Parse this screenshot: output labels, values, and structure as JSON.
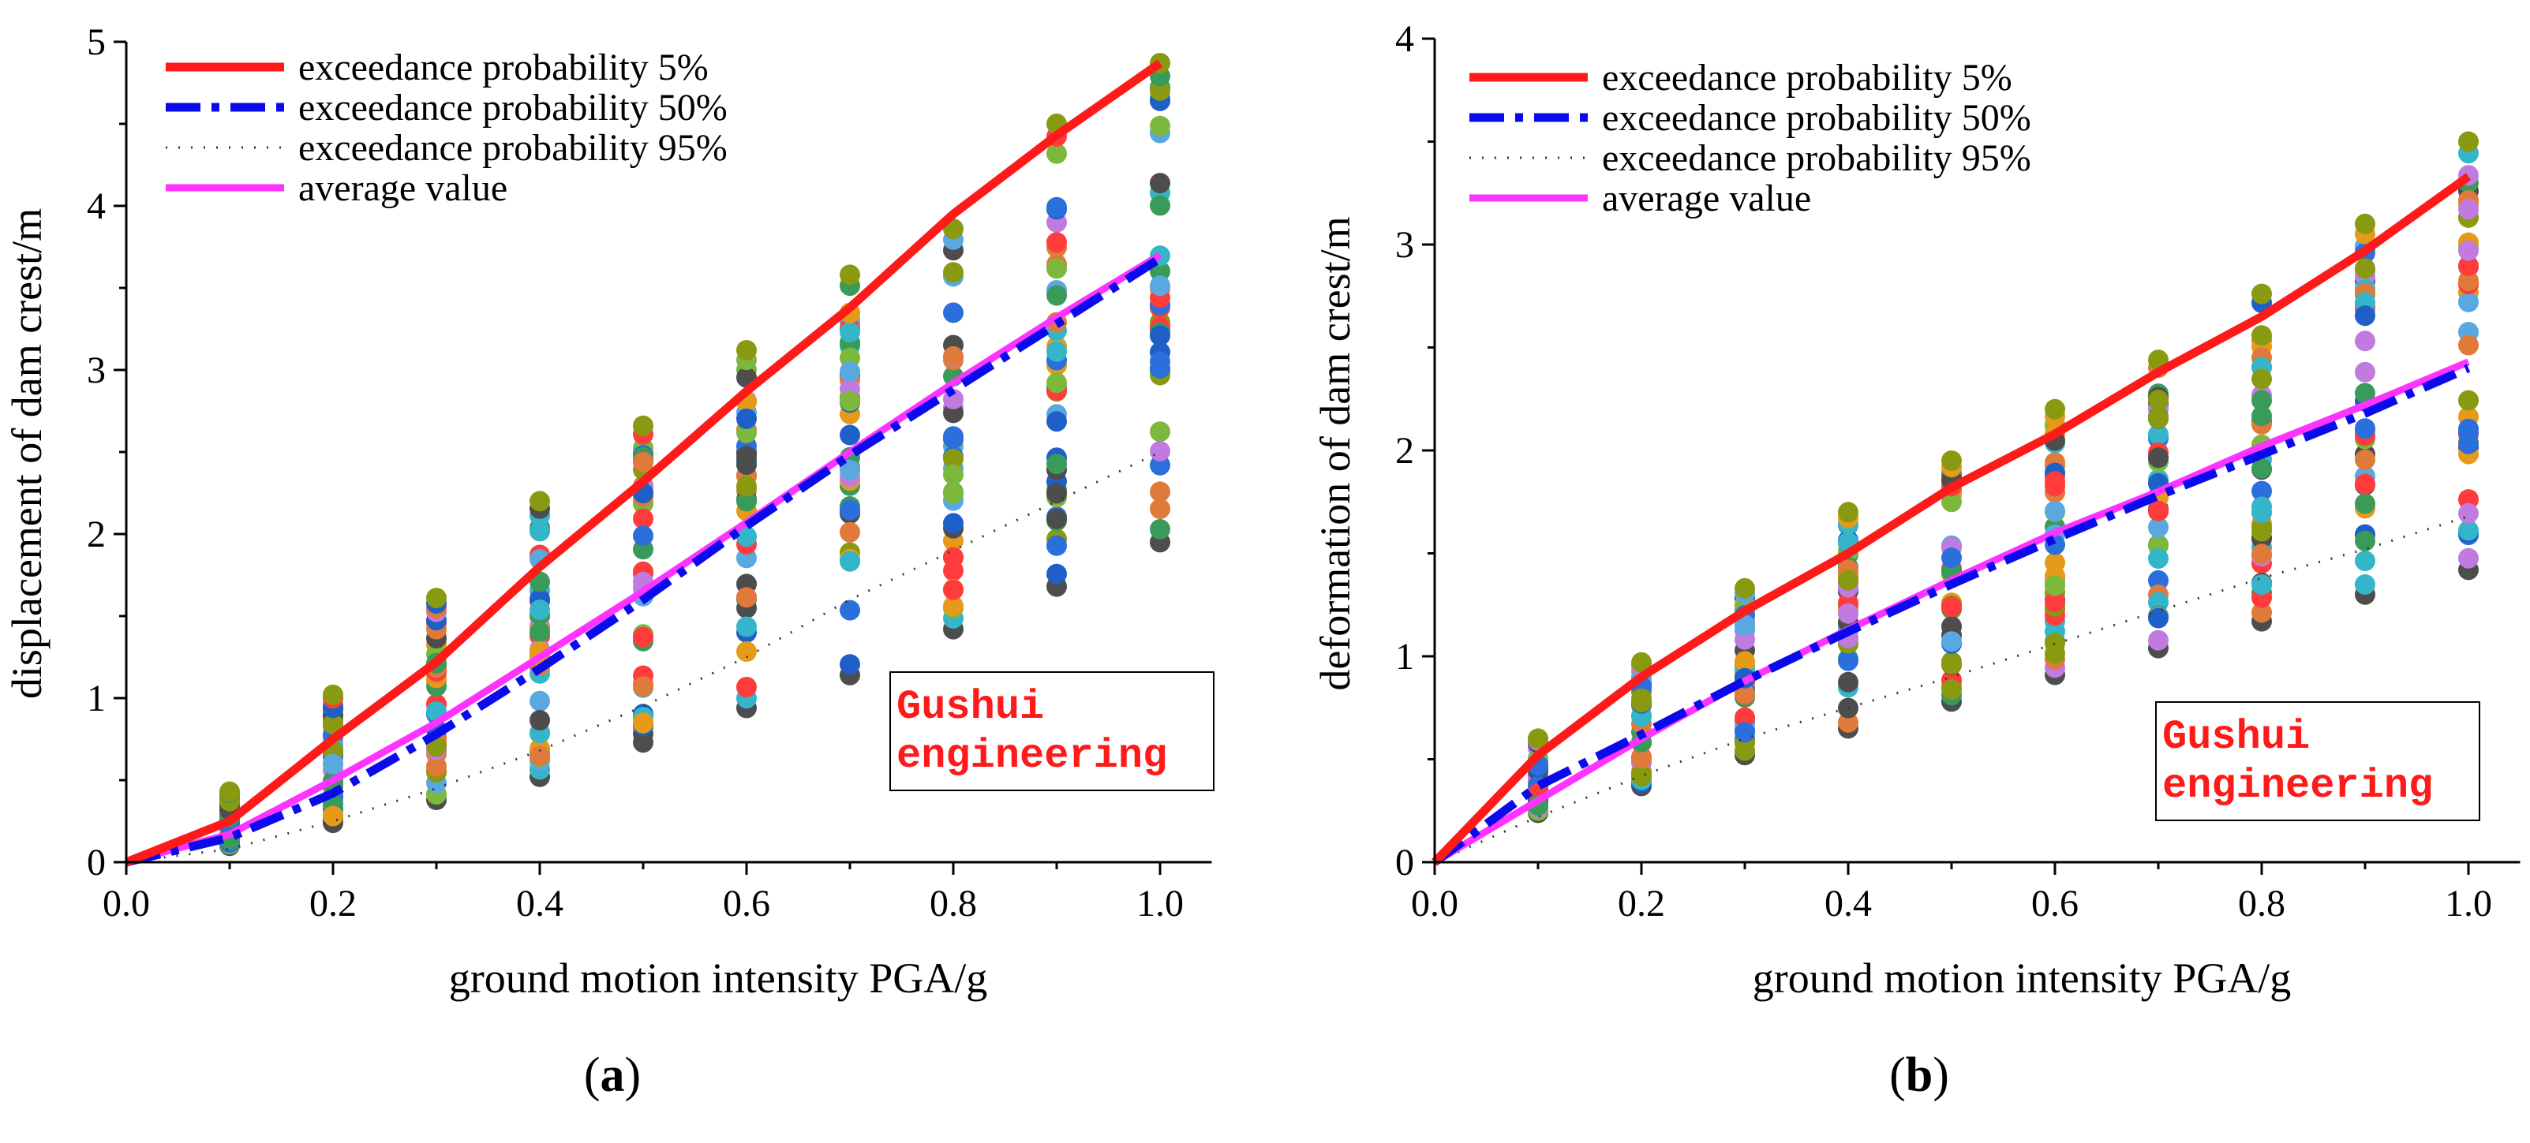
{
  "chart_data": [
    {
      "type": "scatter",
      "panel_label": "(a)",
      "xlabel": "ground motion intensity PGA/g",
      "ylabel": "displacement of dam crest/m",
      "xlim": [
        0.0,
        1.05
      ],
      "ylim": [
        0,
        5
      ],
      "xticks": [
        "0.0",
        "0.2",
        "0.4",
        "0.6",
        "0.8",
        "1.0"
      ],
      "yticks": [
        "0",
        "1",
        "2",
        "3",
        "4",
        "5"
      ],
      "annotation": [
        "Gushui",
        "engineering"
      ],
      "x": [
        0,
        0.1,
        0.2,
        0.3,
        0.4,
        0.5,
        0.6,
        0.7,
        0.8,
        0.9,
        1.0
      ],
      "scatter_range": {
        "min": [
          0,
          0.1,
          0.24,
          0.38,
          0.52,
          0.73,
          0.94,
          1.14,
          1.42,
          1.68,
          1.95
        ],
        "max": [
          0,
          0.43,
          1.02,
          1.61,
          2.2,
          2.66,
          3.12,
          3.58,
          3.86,
          4.5,
          4.87
        ]
      },
      "series": [
        {
          "name": "exceedance probability 5%",
          "values": [
            0,
            0.25,
            0.75,
            1.22,
            1.8,
            2.32,
            2.87,
            3.38,
            3.95,
            4.43,
            4.87
          ]
        },
        {
          "name": "exceedance probability 50%",
          "values": [
            0,
            0.15,
            0.42,
            0.78,
            1.18,
            1.6,
            2.05,
            2.48,
            2.88,
            3.28,
            3.68
          ]
        },
        {
          "name": "exceedance probability 95%",
          "values": [
            0,
            0.08,
            0.25,
            0.45,
            0.68,
            0.95,
            1.25,
            1.6,
            1.9,
            2.2,
            2.5
          ]
        },
        {
          "name": "average value",
          "values": [
            0,
            0.17,
            0.5,
            0.85,
            1.25,
            1.65,
            2.07,
            2.5,
            2.92,
            3.32,
            3.7
          ]
        }
      ]
    },
    {
      "type": "scatter",
      "panel_label": "(b)",
      "xlabel": "ground motion intensity PGA/g",
      "ylabel": "deformation of dam crest/m",
      "xlim": [
        0.0,
        1.05
      ],
      "ylim": [
        0,
        4
      ],
      "xticks": [
        "0.0",
        "0.2",
        "0.4",
        "0.6",
        "0.8",
        "1.0"
      ],
      "yticks": [
        "0",
        "1",
        "2",
        "3",
        "4"
      ],
      "annotation": [
        "Gushui",
        "engineering"
      ],
      "x": [
        0,
        0.1,
        0.2,
        0.3,
        0.4,
        0.5,
        0.6,
        0.7,
        0.8,
        0.9,
        1.0
      ],
      "scatter_range": {
        "min": [
          0,
          0.24,
          0.37,
          0.52,
          0.65,
          0.78,
          0.91,
          1.04,
          1.17,
          1.3,
          1.42
        ],
        "max": [
          0,
          0.6,
          0.97,
          1.33,
          1.7,
          1.95,
          2.2,
          2.44,
          2.76,
          3.1,
          3.5
        ]
      },
      "series": [
        {
          "name": "exceedance probability 5%",
          "values": [
            0,
            0.52,
            0.9,
            1.22,
            1.5,
            1.82,
            2.08,
            2.38,
            2.65,
            2.97,
            3.33
          ]
        },
        {
          "name": "exceedance probability 50%",
          "values": [
            0,
            0.37,
            0.62,
            0.88,
            1.12,
            1.35,
            1.57,
            1.78,
            1.98,
            2.18,
            2.4
          ]
        },
        {
          "name": "exceedance probability 95%",
          "values": [
            0,
            0.22,
            0.42,
            0.6,
            0.75,
            0.9,
            1.06,
            1.22,
            1.38,
            1.52,
            1.68
          ]
        },
        {
          "name": "average value",
          "values": [
            0,
            0.3,
            0.6,
            0.88,
            1.13,
            1.37,
            1.6,
            1.8,
            2.02,
            2.22,
            2.43
          ]
        }
      ]
    }
  ],
  "style": {
    "colors": {
      "p5": "#ff1a1a",
      "p50": "#0a0aeb",
      "p95": "#333333",
      "avg": "#ff33ff",
      "annotation": "#ff1a1a"
    },
    "scatter_palette": [
      "#ff3b3b",
      "#2a6fdb",
      "#35b5c9",
      "#8a9a10",
      "#4d4d4d",
      "#7bb83c",
      "#c07ae0",
      "#e69a1a",
      "#1f5fc8",
      "#5aa8e0",
      "#e07a3a",
      "#3a9a5a"
    ]
  }
}
